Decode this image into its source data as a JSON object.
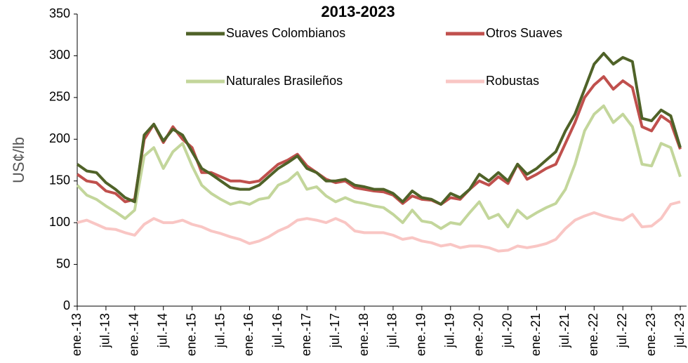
{
  "chart_data": {
    "type": "line",
    "title": "2013-2023",
    "y_label": "US¢/lb",
    "categories": [
      "ene.-13",
      null,
      null,
      "jul.-13",
      null,
      null,
      "ene.-14",
      null,
      null,
      "jul.-14",
      null,
      null,
      "ene.-15",
      null,
      null,
      "jul.-15",
      null,
      null,
      "ene.-16",
      null,
      null,
      "jul.-16",
      null,
      null,
      "ene.-17",
      null,
      null,
      "jul.-17",
      null,
      null,
      "ene.-18",
      null,
      null,
      "jul.-18",
      null,
      null,
      "ene.-19",
      null,
      null,
      "jul.-19",
      null,
      null,
      "ene.-20",
      null,
      null,
      "jul.-20",
      null,
      null,
      "ene.-21",
      null,
      null,
      "jul.-21",
      null,
      null,
      "ene.-22",
      null,
      null,
      "jul.-22",
      null,
      null,
      "ene.-23",
      null,
      null,
      "jul.-23"
    ],
    "series": [
      {
        "name": "Suaves Colombianos",
        "color": "#4f6228",
        "values": [
          170,
          162,
          160,
          148,
          140,
          130,
          125,
          205,
          218,
          198,
          212,
          205,
          185,
          165,
          158,
          150,
          142,
          140,
          140,
          145,
          155,
          165,
          172,
          180,
          165,
          160,
          150,
          150,
          152,
          145,
          143,
          140,
          140,
          135,
          125,
          138,
          130,
          128,
          122,
          135,
          130,
          140,
          158,
          150,
          160,
          150,
          170,
          158,
          165,
          175,
          185,
          210,
          230,
          260,
          290,
          303,
          290,
          298,
          293,
          225,
          222,
          235,
          228,
          190
        ]
      },
      {
        "name": "Otros Suaves",
        "color": "#c0504d",
        "values": [
          158,
          150,
          148,
          138,
          135,
          125,
          128,
          200,
          218,
          196,
          215,
          200,
          190,
          160,
          160,
          155,
          150,
          150,
          148,
          150,
          160,
          170,
          175,
          182,
          168,
          160,
          152,
          148,
          150,
          142,
          140,
          138,
          137,
          133,
          123,
          132,
          128,
          127,
          122,
          130,
          128,
          140,
          150,
          145,
          155,
          147,
          170,
          152,
          158,
          165,
          170,
          195,
          220,
          250,
          265,
          275,
          260,
          270,
          262,
          215,
          210,
          228,
          220,
          188
        ]
      },
      {
        "name": "Naturales Brasileños",
        "color": "#c3d69b",
        "values": [
          145,
          133,
          128,
          120,
          113,
          105,
          115,
          180,
          190,
          165,
          185,
          195,
          168,
          145,
          135,
          128,
          122,
          125,
          122,
          128,
          130,
          145,
          150,
          160,
          140,
          143,
          132,
          125,
          130,
          125,
          123,
          120,
          118,
          110,
          100,
          115,
          102,
          100,
          93,
          100,
          98,
          112,
          125,
          105,
          110,
          95,
          115,
          105,
          112,
          118,
          123,
          140,
          170,
          210,
          230,
          240,
          220,
          230,
          215,
          170,
          168,
          195,
          190,
          155
        ]
      },
      {
        "name": "Robustas",
        "color": "#f9c6c4",
        "values": [
          100,
          103,
          98,
          93,
          92,
          88,
          85,
          98,
          105,
          100,
          100,
          103,
          98,
          95,
          90,
          87,
          83,
          80,
          75,
          78,
          83,
          90,
          95,
          103,
          105,
          103,
          100,
          105,
          100,
          90,
          88,
          88,
          88,
          85,
          80,
          82,
          78,
          76,
          72,
          74,
          70,
          72,
          72,
          70,
          66,
          67,
          72,
          70,
          72,
          75,
          80,
          93,
          103,
          108,
          112,
          108,
          105,
          103,
          110,
          95,
          96,
          105,
          122,
          125
        ]
      }
    ],
    "ylim": [
      0,
      350
    ],
    "yticks": [
      0,
      50,
      100,
      150,
      200,
      250,
      300,
      350
    ]
  }
}
